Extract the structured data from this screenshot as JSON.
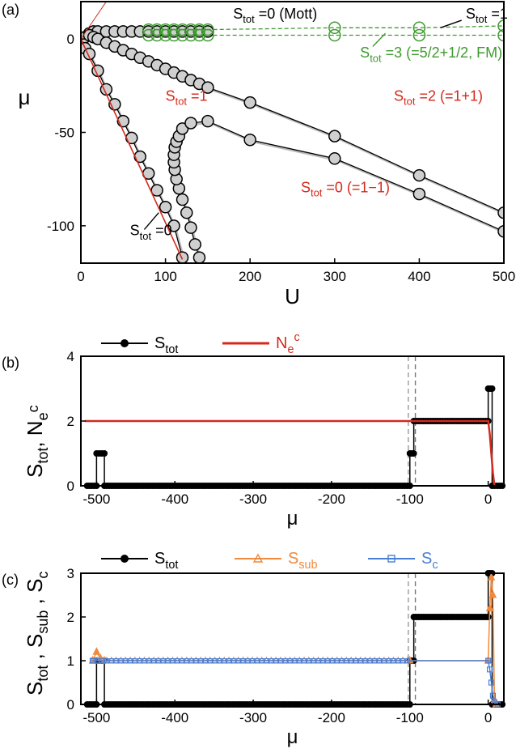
{
  "chart_data": [
    {
      "panel": "(a)",
      "type": "line",
      "xlabel": "U",
      "ylabel": "μ",
      "xlim": [
        0,
        500
      ],
      "ylim": [
        -120,
        20
      ],
      "xticks": [
        "0",
        "100",
        "200",
        "300",
        "400",
        "500"
      ],
      "yticks": [
        "-100",
        "-50",
        "0"
      ],
      "series": [
        {
          "name": "upper-boundary",
          "color": "#000000",
          "marker": "circle-filled",
          "x": [
            5,
            10,
            15,
            20,
            30,
            40,
            50,
            60,
            70,
            80,
            90,
            100,
            110,
            120,
            130,
            140,
            150
          ],
          "y": [
            1,
            3,
            4,
            4,
            4,
            4,
            4,
            4,
            4,
            4,
            4,
            4,
            4,
            4,
            4,
            4,
            4
          ]
        },
        {
          "name": "line-to-500",
          "color": "#000000",
          "marker": "circle-filled",
          "x": [
            10,
            15,
            20,
            30,
            40,
            50,
            60,
            70,
            80,
            90,
            100,
            110,
            120,
            130,
            140,
            150,
            200,
            300,
            400,
            500
          ],
          "y": [
            2,
            1,
            0,
            -2,
            -4,
            -6,
            -8,
            -10,
            -12,
            -14,
            -16,
            -18,
            -20,
            -22,
            -24,
            -26,
            -34,
            -52,
            -73,
            -93
          ]
        },
        {
          "name": "steep-boundary",
          "color": "#000000",
          "marker": "circle-open",
          "x": [
            5,
            10,
            20,
            30,
            40,
            50,
            60,
            70,
            80,
            90,
            100,
            110,
            120
          ],
          "y": [
            -5,
            -8,
            -17,
            -27,
            -35,
            -44,
            -53,
            -63,
            -72,
            -81,
            -90,
            -100,
            -117
          ]
        },
        {
          "name": "arc-boundary",
          "color": "#000000",
          "marker": "circle-filled",
          "x": [
            140,
            135,
            130,
            125,
            120,
            116,
            113,
            111,
            110,
            110,
            111,
            113,
            116,
            120,
            130,
            150,
            200,
            300,
            400,
            500
          ],
          "y": [
            -117,
            -110,
            -101,
            -93,
            -86,
            -80,
            -75,
            -70,
            -66,
            -62,
            -58,
            -55,
            -52,
            -48,
            -45,
            -44,
            -54,
            -64,
            -83,
            -103
          ]
        },
        {
          "name": "green-FM-1",
          "color": "#3e9b2f",
          "marker": "circle-open",
          "x": [
            80,
            90,
            100,
            110,
            120,
            130,
            140,
            150,
            300,
            400,
            500
          ],
          "y": [
            5,
            5,
            5,
            5,
            5,
            5,
            5,
            5,
            6,
            6,
            7
          ]
        },
        {
          "name": "green-FM-2",
          "color": "#3e9b2f",
          "marker": "circle-open",
          "x": [
            80,
            90,
            100,
            110,
            120,
            130,
            140,
            150,
            300,
            400,
            500
          ],
          "y": [
            2,
            2,
            2,
            2,
            2,
            2,
            2,
            2,
            2,
            2,
            2
          ]
        },
        {
          "name": "red-line",
          "color": "#d42a1c",
          "marker": "none",
          "x": [
            0,
            120
          ],
          "y": [
            0,
            -118
          ]
        }
      ],
      "annotations": [
        {
          "main": "S",
          "sub": "tot",
          "rest": " =0 (Mott)",
          "color": "#000000",
          "x": 180,
          "y": 11
        },
        {
          "main": "S",
          "sub": "tot",
          "rest": " =1",
          "color": "#000000",
          "x": 455,
          "y": 11
        },
        {
          "main": "S",
          "sub": "tot",
          "rest": " =3 (=5/2+1/2, FM)",
          "color": "#3e9b2f",
          "x": 330,
          "y": -10
        },
        {
          "main": "S",
          "sub": "tot",
          "rest": " =1",
          "color": "#d42a1c",
          "x": 100,
          "y": -33
        },
        {
          "main": "S",
          "sub": "tot",
          "rest": " =2 (=1+1)",
          "color": "#d42a1c",
          "x": 370,
          "y": -33
        },
        {
          "main": "S",
          "sub": "tot",
          "rest": " =0 (=1−1)",
          "color": "#d42a1c",
          "x": 260,
          "y": -82
        },
        {
          "main": "S",
          "sub": "tot",
          "rest": " =0",
          "color": "#000000",
          "x": 58,
          "y": -105
        }
      ]
    },
    {
      "panel": "(b)",
      "type": "line",
      "xlabel": "μ",
      "ylabel": "S_tot, N_e^c",
      "xlim": [
        -520,
        20
      ],
      "ylim": [
        0,
        4
      ],
      "xticks": [
        "-500",
        "-400",
        "-300",
        "-200",
        "-100",
        "0"
      ],
      "yticks": [
        "0",
        "2",
        "4"
      ],
      "legend": [
        {
          "label": "S",
          "sub": "tot",
          "color": "#000000",
          "marker": "circle-filled"
        },
        {
          "label": "N",
          "sub": "e",
          "sup": "c",
          "color": "#d42a1c",
          "marker": "none"
        }
      ],
      "series": [
        {
          "name": "S_tot",
          "color": "#000000",
          "steps": [
            [
              -500,
              1
            ],
            [
              -490,
              0
            ],
            [
              -100,
              1
            ],
            [
              -95,
              2
            ],
            [
              0,
              3
            ],
            [
              5,
              0
            ]
          ]
        },
        {
          "name": "N_e^c",
          "color": "#d42a1c",
          "x": [
            -515,
            0,
            2,
            4,
            6,
            8
          ],
          "y": [
            2,
            2,
            1.6,
            1.0,
            0.4,
            0
          ]
        }
      ],
      "vlines": [
        -102,
        -93
      ]
    },
    {
      "panel": "(c)",
      "type": "line",
      "xlabel": "μ",
      "ylabel": "S_tot, S_sub, S_c",
      "xlim": [
        -520,
        20
      ],
      "ylim": [
        0,
        3
      ],
      "xticks": [
        "-500",
        "-400",
        "-300",
        "-200",
        "-100",
        "0"
      ],
      "yticks": [
        "0",
        "1",
        "2",
        "3"
      ],
      "legend": [
        {
          "label": "S",
          "sub": "tot",
          "color": "#000000",
          "marker": "circle-filled"
        },
        {
          "label": "S",
          "sub": "sub",
          "color": "#f08a3c",
          "marker": "triangle-open"
        },
        {
          "label": "S",
          "sub": "c",
          "color": "#4a7fd6",
          "marker": "square-open"
        }
      ],
      "series": [
        {
          "name": "S_tot",
          "color": "#000000",
          "steps": [
            [
              -500,
              1
            ],
            [
              -490,
              0
            ],
            [
              -100,
              1
            ],
            [
              -95,
              2
            ],
            [
              0,
              3
            ],
            [
              5,
              0
            ]
          ]
        },
        {
          "name": "S_sub",
          "color": "#f08a3c",
          "x": [
            -505,
            -500,
            -495,
            -490,
            -100,
            0,
            2,
            4,
            6,
            8,
            10
          ],
          "y": [
            1,
            1.2,
            1.05,
            1,
            1,
            1,
            2.2,
            2.9,
            2.5,
            0.1,
            0
          ]
        },
        {
          "name": "S_c",
          "color": "#4a7fd6",
          "x": [
            -505,
            0,
            2,
            4,
            6,
            8,
            12
          ],
          "y": [
            1,
            1,
            0.8,
            0.5,
            0.2,
            0.05,
            0
          ]
        }
      ],
      "vlines": [
        -102,
        -93
      ]
    }
  ]
}
